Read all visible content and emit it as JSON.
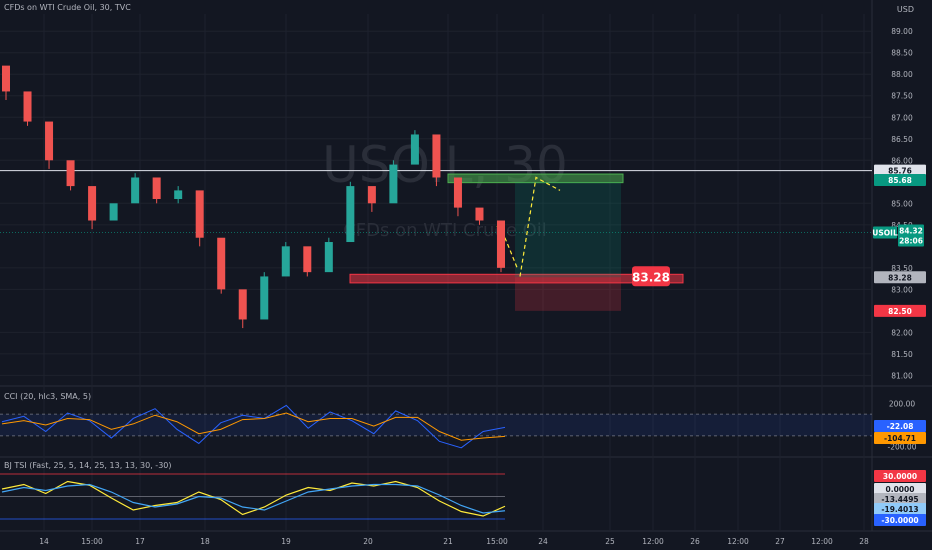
{
  "header": {
    "symbol_title": "CFDs on WTI Crude Oil, 30, TVC",
    "currency": "USD",
    "watermark_symbol": "USOIL, 30",
    "watermark_desc": "CFDs on WTI Crude Oil"
  },
  "chart_data": [
    {
      "type": "candlestick",
      "title": "CFDs on WTI Crude Oil, 30, TVC",
      "y_axis_labels": [
        "89.00",
        "88.50",
        "88.00",
        "87.50",
        "87.00",
        "86.50",
        "86.00",
        "85.00",
        "84.50",
        "83.50",
        "83.00",
        "82.00",
        "81.50",
        "81.00"
      ],
      "ylim": [
        80.8,
        89.4
      ],
      "x_tick_labels": [
        "14",
        "15:00",
        "17",
        "18",
        "19",
        "20",
        "21",
        "15:00",
        "24",
        "25",
        "12:00",
        "26",
        "12:00",
        "27",
        "12:00",
        "28"
      ],
      "candles_approx": [
        [
          88.2,
          87.6,
          87.4,
          87.7
        ],
        [
          87.6,
          86.9,
          87.0,
          86.8
        ],
        [
          86.9,
          86.0,
          85.8,
          86.1
        ],
        [
          86.0,
          85.4,
          85.3,
          85.5
        ],
        [
          85.4,
          84.6,
          84.4,
          84.7
        ],
        [
          84.6,
          85.0,
          84.8,
          84.9
        ],
        [
          85.0,
          85.6,
          85.4,
          85.7
        ],
        [
          85.6,
          85.1,
          85.0,
          85.3
        ],
        [
          85.1,
          85.3,
          85.0,
          85.4
        ],
        [
          85.3,
          84.2,
          84.0,
          84.3
        ],
        [
          84.2,
          83.0,
          82.9,
          83.2
        ],
        [
          83.0,
          82.3,
          82.1,
          82.5
        ],
        [
          82.3,
          83.3,
          83.1,
          83.4
        ],
        [
          83.3,
          84.0,
          83.8,
          84.1
        ],
        [
          84.0,
          83.4,
          83.3,
          83.6
        ],
        [
          83.4,
          84.1,
          83.9,
          84.2
        ],
        [
          84.1,
          85.4,
          85.2,
          85.5
        ],
        [
          85.4,
          85.0,
          84.8,
          85.2
        ],
        [
          85.0,
          85.9,
          85.7,
          86.0
        ],
        [
          85.9,
          86.6,
          86.4,
          86.7
        ],
        [
          86.6,
          85.6,
          85.4,
          85.7
        ],
        [
          85.6,
          84.9,
          84.7,
          85.0
        ],
        [
          84.9,
          84.6,
          84.5,
          84.8
        ],
        [
          84.6,
          83.5,
          83.4,
          83.6
        ]
      ],
      "price_labels": {
        "horizontal_line": "85.76",
        "take_profit": "85.68",
        "current": "84.32",
        "current_symbol": "USOIL",
        "countdown": "28:06",
        "entry_axis": "83.28",
        "stop_loss": "82.50"
      },
      "entry_callout": "83.28",
      "zones": [
        {
          "role": "take-profit",
          "low": 85.48,
          "high": 85.68,
          "color": "#4caf50"
        },
        {
          "role": "support",
          "low": 83.15,
          "high": 83.35,
          "color": "#f23645"
        }
      ],
      "projection_path": [
        83.3,
        85.6,
        85.3
      ]
    },
    {
      "type": "line",
      "title": "CCI (20, hlc3, SMA, 5)",
      "y_axis_labels": [
        "200.00",
        "-200.00"
      ],
      "value_labels": [
        "-22.08",
        "-104.71"
      ],
      "band": [
        -100,
        100
      ],
      "series": [
        {
          "values": [
            30,
            80,
            -60,
            110,
            40,
            -120,
            60,
            150,
            -40,
            -170,
            20,
            90,
            60,
            180,
            -30,
            120,
            40,
            -80,
            130,
            40,
            -150,
            -210,
            -60,
            -22
          ]
        },
        {
          "values": [
            10,
            40,
            0,
            60,
            50,
            -40,
            10,
            90,
            30,
            -80,
            -40,
            50,
            60,
            110,
            30,
            60,
            60,
            -10,
            70,
            70,
            -60,
            -140,
            -120,
            -105
          ]
        }
      ]
    },
    {
      "type": "line",
      "title": "BJ TSI (Fast, 25, 5, 14, 25, 13, 13, 30, -30)",
      "y_axis_labels": [
        "30.0000",
        "0.0000",
        "-13.4495",
        "-19.4013",
        "-30.0000"
      ],
      "band": [
        -30,
        30
      ],
      "series": [
        {
          "values": [
            10,
            16,
            4,
            20,
            15,
            -2,
            -18,
            -12,
            -8,
            6,
            -4,
            -24,
            -14,
            2,
            12,
            8,
            18,
            14,
            20,
            12,
            -6,
            -20,
            -26,
            -13
          ]
        },
        {
          "values": [
            6,
            12,
            8,
            14,
            16,
            6,
            -8,
            -14,
            -10,
            0,
            -2,
            -14,
            -18,
            -6,
            6,
            10,
            14,
            16,
            16,
            14,
            2,
            -12,
            -22,
            -19
          ]
        }
      ]
    }
  ]
}
